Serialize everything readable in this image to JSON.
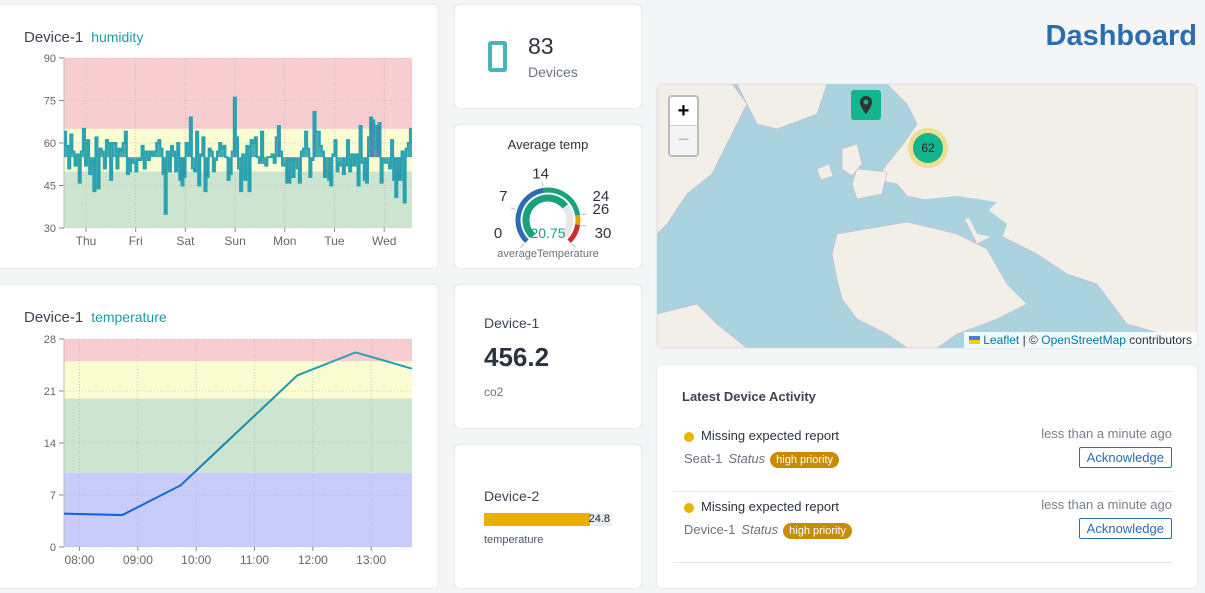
{
  "header": {
    "title": "Dashboard"
  },
  "humidity": {
    "device": "Device-1",
    "metric": "humidity",
    "chart_data": {
      "type": "line",
      "ylim": [
        30,
        90
      ],
      "yticks": [
        30,
        45,
        60,
        75,
        90
      ],
      "xticks": [
        "Thu",
        "Fri",
        "Sat",
        "Sun",
        "Mon",
        "Tue",
        "Wed"
      ],
      "bands": [
        {
          "from": 30,
          "to": 50,
          "color": "#cde5d0"
        },
        {
          "from": 50,
          "to": 65,
          "color": "#fafcd2"
        },
        {
          "from": 65,
          "to": 90,
          "color": "#f7cdd0"
        }
      ],
      "values": [
        64,
        59,
        51,
        63,
        57,
        52,
        56,
        46,
        57,
        65,
        52,
        61,
        49,
        54,
        43,
        62,
        44,
        58,
        57,
        51,
        61,
        60,
        47,
        60,
        60,
        51,
        58,
        57,
        60,
        64,
        49,
        50,
        54,
        53,
        50,
        54,
        54,
        59,
        51,
        57,
        54,
        57,
        56,
        57,
        60,
        61,
        58,
        49,
        35,
        57,
        50,
        59,
        57,
        50,
        60,
        47,
        45,
        48,
        60,
        56,
        69,
        51,
        50,
        64,
        45,
        56,
        62,
        43,
        48,
        58,
        57,
        50,
        54,
        57,
        60,
        58,
        59,
        55,
        47,
        49,
        57,
        76,
        62,
        51,
        43,
        56,
        47,
        59,
        43,
        61,
        60,
        62,
        55,
        53,
        64,
        53,
        52,
        55,
        55,
        56,
        53,
        62,
        66,
        57,
        52,
        52,
        46,
        46,
        54,
        48,
        54,
        51,
        46,
        57,
        58,
        64,
        58,
        48,
        54,
        71,
        64,
        64,
        59,
        57,
        48,
        50,
        47,
        45,
        56,
        61,
        50,
        53,
        52,
        49,
        52,
        61,
        50,
        56,
        52,
        56,
        45,
        66,
        53,
        47,
        46,
        62,
        69,
        68,
        58,
        66,
        67,
        46,
        54,
        53,
        53,
        51,
        61,
        47,
        41,
        47,
        47,
        57,
        39,
        58,
        60,
        65
      ]
    }
  },
  "temperature": {
    "device": "Device-1",
    "metric": "temperature",
    "chart_data": {
      "type": "line",
      "ylim": [
        0,
        28
      ],
      "yticks": [
        0,
        7,
        14,
        21,
        28
      ],
      "xticks": [
        "08:00",
        "09:00",
        "10:00",
        "11:00",
        "12:00",
        "13:00"
      ],
      "xlim": [
        "07:44",
        "13:42"
      ],
      "bands": [
        {
          "from": 0,
          "to": 10,
          "color": "#c9ccfb"
        },
        {
          "from": 10,
          "to": 20,
          "color": "#cde5d0"
        },
        {
          "from": 20,
          "to": 25,
          "color": "#fafcd2"
        },
        {
          "from": 25,
          "to": 28,
          "color": "#f7cdd0"
        }
      ],
      "points": [
        {
          "x": "07:44",
          "y": 4.5
        },
        {
          "x": "08:44",
          "y": 4.3
        },
        {
          "x": "09:44",
          "y": 8.3
        },
        {
          "x": "11:44",
          "y": 23.1
        },
        {
          "x": "12:44",
          "y": 26.2
        },
        {
          "x": "13:42",
          "y": 24.0
        }
      ]
    }
  },
  "devices": {
    "count": "83",
    "label": "Devices",
    "icon": "tablet-icon"
  },
  "gauge": {
    "title": "Average temp",
    "value": "20.75",
    "label": "averageTemperature",
    "min": 0,
    "max": 30,
    "ticks": [
      "0",
      "7",
      "14",
      "24",
      "26",
      "30"
    ],
    "bands": [
      {
        "from": 0,
        "to": 14,
        "color": "#2a6db0"
      },
      {
        "from": 14,
        "to": 24,
        "color": "#1aa07a"
      },
      {
        "from": 24,
        "to": 26,
        "color": "#e0a010"
      },
      {
        "from": 26,
        "to": 30,
        "color": "#cc2f2f"
      }
    ],
    "value_color": "#1aa07a"
  },
  "co2": {
    "device": "Device-1",
    "value": "456.2",
    "metric": "co2"
  },
  "device2": {
    "device": "Device-2",
    "value": "24.8",
    "metric": "temperature",
    "fraction": 0.83,
    "bar_color": "#e8b000"
  },
  "map": {
    "zoom_in": "+",
    "zoom_out": "−",
    "cluster_count": "62",
    "attribution": {
      "leaflet": "Leaflet",
      "sep": "| ©",
      "osm": "OpenStreetMap",
      "suffix": "contributors"
    }
  },
  "activity": {
    "title": "Latest Device Activity",
    "items": [
      {
        "event": "Missing expected report",
        "device": "Seat-1",
        "status_label": "Status",
        "badge": "high priority",
        "time": "less than a minute ago",
        "button": "Acknowledge"
      },
      {
        "event": "Missing expected report",
        "device": "Device-1",
        "status_label": "Status",
        "badge": "high priority",
        "time": "less than a minute ago",
        "button": "Acknowledge"
      }
    ]
  }
}
